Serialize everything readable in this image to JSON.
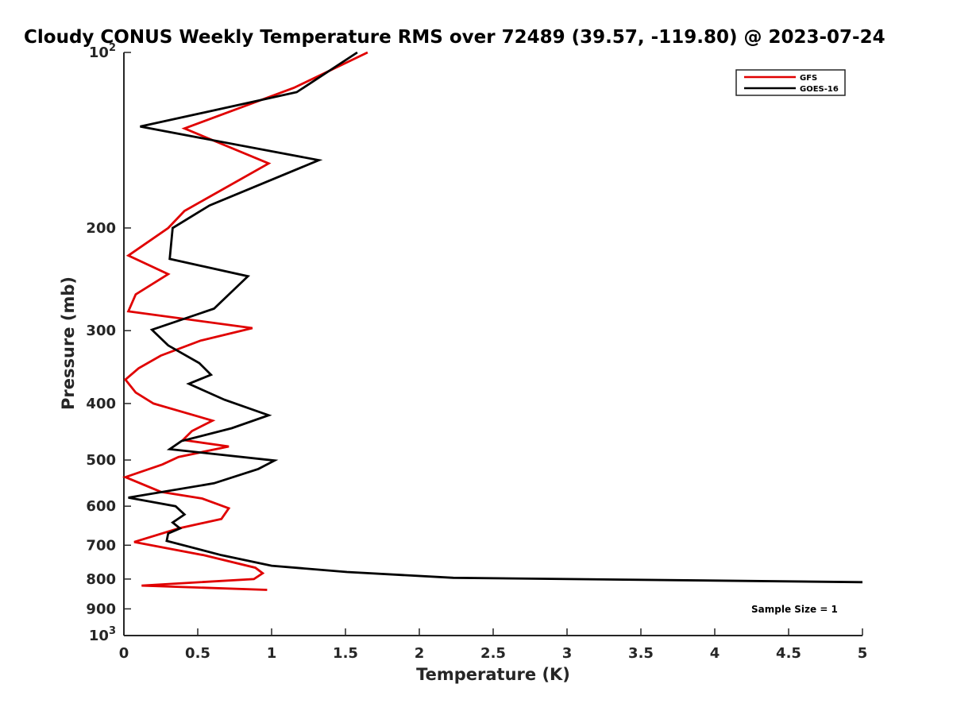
{
  "chart_data": {
    "type": "line",
    "title": "Cloudy CONUS Weekly Temperature RMS over 72489 (39.57, -119.80) @ 2023-07-24",
    "xlabel": "Temperature (K)",
    "ylabel": "Pressure (mb)",
    "xlim": [
      0,
      5
    ],
    "ylim": [
      100,
      1000
    ],
    "yscale": "log",
    "y_reversed": true,
    "x_ticks": [
      "0",
      "0.5",
      "1",
      "1.5",
      "2",
      "2.5",
      "3",
      "3.5",
      "4",
      "4.5",
      "5"
    ],
    "y_ticks": [
      {
        "value": 100,
        "label": "10",
        "sup": "2"
      },
      {
        "value": 200,
        "label": "200",
        "sup": ""
      },
      {
        "value": 300,
        "label": "300",
        "sup": ""
      },
      {
        "value": 400,
        "label": "400",
        "sup": ""
      },
      {
        "value": 500,
        "label": "500",
        "sup": ""
      },
      {
        "value": 600,
        "label": "600",
        "sup": ""
      },
      {
        "value": 700,
        "label": "700",
        "sup": ""
      },
      {
        "value": 800,
        "label": "800",
        "sup": ""
      },
      {
        "value": 900,
        "label": "900",
        "sup": ""
      },
      {
        "value": 1000,
        "label": "10",
        "sup": "3"
      }
    ],
    "grid": false,
    "legend_position": "top-right",
    "annotation": "Sample Size = 1",
    "series": [
      {
        "name": "GFS",
        "color": "#e00000",
        "points": [
          [
            1.65,
            100
          ],
          [
            1.15,
            115
          ],
          [
            0.41,
            135
          ],
          [
            0.98,
            155
          ],
          [
            0.41,
            187
          ],
          [
            0.3,
            200
          ],
          [
            0.03,
            223
          ],
          [
            0.3,
            240
          ],
          [
            0.08,
            260
          ],
          [
            0.03,
            278
          ],
          [
            0.87,
            297
          ],
          [
            0.52,
            312
          ],
          [
            0.25,
            331
          ],
          [
            0.1,
            348
          ],
          [
            0.01,
            364
          ],
          [
            0.08,
            383
          ],
          [
            0.2,
            400
          ],
          [
            0.6,
            428
          ],
          [
            0.46,
            446
          ],
          [
            0.4,
            462
          ],
          [
            0.71,
            474
          ],
          [
            0.37,
            494
          ],
          [
            0.26,
            509
          ],
          [
            0.01,
            535
          ],
          [
            0.25,
            567
          ],
          [
            0.53,
            582
          ],
          [
            0.71,
            605
          ],
          [
            0.66,
            631
          ],
          [
            0.37,
            655
          ],
          [
            0.07,
            691
          ],
          [
            0.54,
            728
          ],
          [
            0.89,
            765
          ],
          [
            0.94,
            782
          ],
          [
            0.88,
            800
          ],
          [
            0.12,
            821
          ],
          [
            0.97,
            835
          ]
        ]
      },
      {
        "name": "GOES-16",
        "color": "#000000",
        "points": [
          [
            1.58,
            100
          ],
          [
            1.17,
            117
          ],
          [
            0.11,
            134
          ],
          [
            1.32,
            153
          ],
          [
            0.58,
            183
          ],
          [
            0.33,
            200
          ],
          [
            0.31,
            226
          ],
          [
            0.84,
            242
          ],
          [
            0.61,
            275
          ],
          [
            0.19,
            299
          ],
          [
            0.3,
            318
          ],
          [
            0.51,
            341
          ],
          [
            0.59,
            357
          ],
          [
            0.44,
            370
          ],
          [
            0.68,
            394
          ],
          [
            0.98,
            419
          ],
          [
            0.73,
            441
          ],
          [
            0.39,
            464
          ],
          [
            0.31,
            479
          ],
          [
            1.02,
            501
          ],
          [
            0.91,
            518
          ],
          [
            0.61,
            548
          ],
          [
            0.03,
            580
          ],
          [
            0.35,
            600
          ],
          [
            0.41,
            620
          ],
          [
            0.33,
            640
          ],
          [
            0.38,
            655
          ],
          [
            0.3,
            668
          ],
          [
            0.29,
            688
          ],
          [
            0.66,
            728
          ],
          [
            1.0,
            759
          ],
          [
            1.51,
            778
          ],
          [
            2.23,
            796
          ],
          [
            5.0,
            810
          ]
        ]
      }
    ]
  }
}
